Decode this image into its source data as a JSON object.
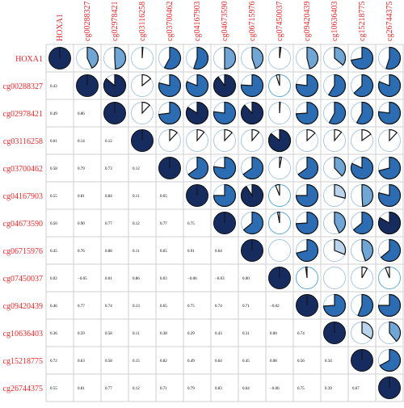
{
  "chart_data": {
    "type": "heatmap",
    "title": "",
    "variables": [
      "HOXA1",
      "cg00288327",
      "cg02978421",
      "cg03116258",
      "cg03700462",
      "cg04167903",
      "cg04673590",
      "cg06715976",
      "cg07450037",
      "cg09420439",
      "cg10636403",
      "cg15218775",
      "cg26744375"
    ],
    "lower_triangle_labels": [
      [],
      [
        "0.43"
      ],
      [
        "0.49",
        "0.86"
      ],
      [
        "0.01",
        "0.14",
        "0.12"
      ],
      [
        "0.58",
        "0.79",
        "0.73",
        "0.12"
      ],
      [
        "0.55",
        "0.81",
        "0.84",
        "0.11",
        "0.65"
      ],
      [
        "0.50",
        "0.90",
        "0.77",
        "0.12",
        "0.77",
        "0.75"
      ],
      [
        "0.45",
        "0.76",
        "0.88",
        "0.11",
        "0.65",
        "0.91",
        "0.64"
      ],
      [
        "0.02",
        "−0.05",
        "0.01",
        "0.86",
        "0.03",
        "−0.06",
        "−0.03",
        "0.00"
      ],
      [
        "0.46",
        "0.77",
        "0.74",
        "0.13",
        "0.65",
        "0.75",
        "0.74",
        "0.71",
        "−0.02"
      ],
      [
        "0.36",
        "0.59",
        "0.58",
        "0.11",
        "0.38",
        "0.29",
        "0.43",
        "0.31",
        "0.00",
        "0.74"
      ],
      [
        "0.72",
        "0.63",
        "0.58",
        "0.15",
        "0.82",
        "0.49",
        "0.64",
        "0.45",
        "0.08",
        "0.56",
        "0.34"
      ],
      [
        "0.55",
        "0.81",
        "0.77",
        "0.12",
        "0.71",
        "0.79",
        "0.83",
        "0.64",
        "−0.06",
        "0.75",
        "0.39",
        "0.67"
      ]
    ],
    "lower_triangle_values": [
      [],
      [
        0.43
      ],
      [
        0.49,
        0.86
      ],
      [
        0.01,
        0.14,
        0.12
      ],
      [
        0.58,
        0.79,
        0.73,
        0.12
      ],
      [
        0.55,
        0.81,
        0.84,
        0.11,
        0.65
      ],
      [
        0.5,
        0.9,
        0.77,
        0.12,
        0.77,
        0.75
      ],
      [
        0.45,
        0.76,
        0.88,
        0.11,
        0.65,
        0.91,
        0.64
      ],
      [
        0.02,
        -0.05,
        0.01,
        0.86,
        0.03,
        -0.06,
        -0.03,
        0.0
      ],
      [
        0.46,
        0.77,
        0.74,
        0.13,
        0.65,
        0.75,
        0.74,
        0.71,
        -0.02
      ],
      [
        0.36,
        0.59,
        0.58,
        0.11,
        0.38,
        0.29,
        0.43,
        0.31,
        0.0,
        0.74
      ],
      [
        0.72,
        0.63,
        0.58,
        0.15,
        0.82,
        0.49,
        0.64,
        0.45,
        0.08,
        0.56,
        0.34
      ],
      [
        0.55,
        0.81,
        0.77,
        0.12,
        0.71,
        0.79,
        0.83,
        0.64,
        -0.06,
        0.75,
        0.39,
        0.67
      ]
    ],
    "upper_triangle_glyph": "pie",
    "lower_triangle_glyph": "number",
    "diagonal": "full circle",
    "colors": {
      "label_text": "#e8262a",
      "grid": "#cfcfcf",
      "dark": "#162b5e",
      "mid": "#2b6cb3",
      "light": "#6fa6d6",
      "pale": "#b9d4ec",
      "negative_ring": "#5aa9d6",
      "outline": "#111111"
    }
  }
}
